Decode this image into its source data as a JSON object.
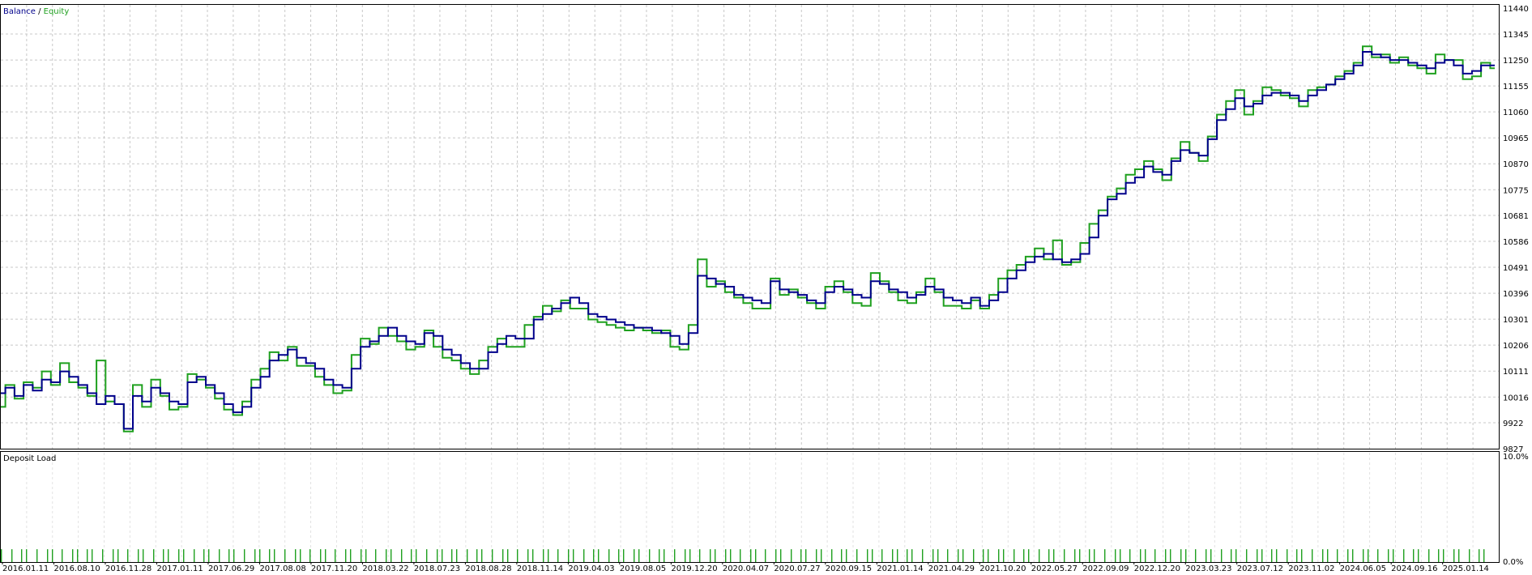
{
  "colors": {
    "balance": "#00008b",
    "equity": "#1fa01f",
    "grid": "#c8c8c8",
    "frame": "#000000",
    "load_bar": "#1fa01f"
  },
  "legend": {
    "balance": "Balance",
    "separator": " / ",
    "equity": "Equity"
  },
  "load_panel": {
    "title": "Deposit Load",
    "top_label": "10.0%",
    "bottom_label": "0.0%"
  },
  "chart_data": [
    {
      "type": "line",
      "title": "",
      "series": [
        {
          "name": "Balance",
          "values": [
            10030,
            10050,
            10020,
            10060,
            10040,
            10080,
            10070,
            10110,
            10090,
            10060,
            10030,
            9990,
            10020,
            9990,
            9900,
            10020,
            10000,
            10050,
            10030,
            10000,
            9990,
            10070,
            10090,
            10060,
            10030,
            9990,
            9960,
            9980,
            10050,
            10090,
            10150,
            10170,
            10190,
            10160,
            10140,
            10120,
            10080,
            10060,
            10050,
            10120,
            10200,
            10220,
            10240,
            10270,
            10240,
            10220,
            10210,
            10250,
            10240,
            10190,
            10170,
            10140,
            10120,
            10120,
            10180,
            10210,
            10240,
            10230,
            10230,
            10300,
            10320,
            10340,
            10360,
            10380,
            10360,
            10320,
            10310,
            10300,
            10290,
            10280,
            10270,
            10270,
            10260,
            10250,
            10240,
            10210,
            10250,
            10460,
            10450,
            10430,
            10420,
            10390,
            10380,
            10370,
            10360,
            10440,
            10410,
            10400,
            10390,
            10370,
            10360,
            10400,
            10420,
            10410,
            10390,
            10380,
            10440,
            10430,
            10410,
            10400,
            10380,
            10390,
            10420,
            10410,
            10380,
            10370,
            10360,
            10380,
            10350,
            10370,
            10400,
            10450,
            10480,
            10510,
            10530,
            10540,
            10520,
            10510,
            10520,
            10540,
            10600,
            10680,
            10740,
            10760,
            10800,
            10820,
            10860,
            10840,
            10830,
            10880,
            10920,
            10910,
            10900,
            10960,
            11030,
            11070,
            11110,
            11080,
            11090,
            11120,
            11130,
            11130,
            11120,
            11100,
            11120,
            11140,
            11160,
            11180,
            11200,
            11230,
            11280,
            11270,
            11260,
            11250,
            11250,
            11240,
            11230,
            11220,
            11240,
            11250,
            11230,
            11200,
            11210,
            11230,
            11230
          ]
        },
        {
          "name": "Equity",
          "values": [
            9980,
            10060,
            10010,
            10070,
            10050,
            10110,
            10060,
            10140,
            10070,
            10050,
            10020,
            10150,
            10000,
            9990,
            9890,
            10060,
            9980,
            10080,
            10020,
            9970,
            9980,
            10100,
            10080,
            10050,
            10010,
            9970,
            9950,
            10000,
            10080,
            10120,
            10180,
            10150,
            10200,
            10130,
            10130,
            10090,
            10060,
            10030,
            10040,
            10170,
            10230,
            10210,
            10270,
            10240,
            10220,
            10190,
            10200,
            10260,
            10200,
            10160,
            10150,
            10120,
            10100,
            10150,
            10200,
            10230,
            10200,
            10200,
            10280,
            10310,
            10350,
            10330,
            10370,
            10340,
            10340,
            10300,
            10290,
            10280,
            10270,
            10260,
            10270,
            10260,
            10250,
            10260,
            10200,
            10190,
            10280,
            10520,
            10420,
            10440,
            10400,
            10380,
            10360,
            10340,
            10340,
            10450,
            10390,
            10410,
            10380,
            10360,
            10340,
            10420,
            10440,
            10400,
            10360,
            10350,
            10470,
            10440,
            10400,
            10370,
            10360,
            10400,
            10450,
            10400,
            10350,
            10350,
            10340,
            10370,
            10340,
            10390,
            10450,
            10480,
            10500,
            10530,
            10560,
            10520,
            10590,
            10500,
            10510,
            10580,
            10650,
            10700,
            10750,
            10780,
            10830,
            10850,
            10880,
            10850,
            10810,
            10890,
            10950,
            10910,
            10880,
            10970,
            11050,
            11100,
            11140,
            11050,
            11100,
            11150,
            11140,
            11120,
            11110,
            11080,
            11140,
            11150,
            11160,
            11190,
            11210,
            11240,
            11300,
            11260,
            11270,
            11240,
            11260,
            11230,
            11220,
            11200,
            11270,
            11250,
            11250,
            11180,
            11190,
            11240,
            11220
          ]
        }
      ],
      "ylim": [
        9827,
        11440
      ],
      "yticks": [
        "11440",
        "11345",
        "11250",
        "11155",
        "11060",
        "10965",
        "10870",
        "10775",
        "10681",
        "10586",
        "10491",
        "10396",
        "10301",
        "10206",
        "10111",
        "10016",
        "9922",
        "9827"
      ],
      "grid": true
    },
    {
      "type": "bar",
      "title": "Deposit Load",
      "ylim": [
        0,
        10
      ],
      "values_note_free": true,
      "values": [
        1,
        1,
        1,
        1,
        1,
        1,
        1,
        1,
        1,
        1,
        1,
        1,
        1,
        1,
        1,
        1,
        1,
        1,
        1,
        1,
        1,
        1,
        1,
        1,
        1,
        1,
        1,
        1,
        1,
        1,
        1,
        1,
        1,
        1,
        1,
        1,
        1,
        1,
        1,
        1,
        1,
        1,
        1,
        1,
        1,
        1,
        1,
        1,
        1,
        1,
        1,
        1,
        1,
        1,
        1,
        1,
        1,
        1,
        1,
        1,
        1,
        1,
        1,
        1,
        1,
        1,
        1,
        1,
        1,
        1,
        1,
        1,
        1,
        1,
        1,
        1,
        1,
        1,
        1,
        1,
        1,
        1,
        1,
        1,
        1,
        1,
        1,
        1,
        1,
        1,
        1,
        1,
        1,
        1,
        1,
        1,
        1,
        1,
        1,
        1,
        1,
        1,
        1,
        1,
        1,
        1,
        1,
        1,
        1,
        1,
        1,
        1,
        1,
        1,
        1,
        1,
        1,
        1,
        1,
        1,
        1,
        1,
        1,
        1,
        1,
        1,
        1,
        1,
        1,
        1,
        1,
        1,
        1,
        1,
        1,
        1,
        1,
        1,
        1,
        1,
        1,
        1,
        1,
        1,
        1,
        1,
        1,
        1,
        1,
        1,
        1,
        1,
        1,
        1,
        1,
        1,
        1,
        1,
        1,
        1,
        1,
        1,
        1,
        1,
        1,
        1,
        1,
        1,
        1,
        1,
        1,
        1,
        1,
        1,
        1,
        1,
        1,
        1,
        1,
        1
      ],
      "xticks": [
        "2016.01.11",
        "2016.08.10",
        "2016.11.28",
        "2017.01.11",
        "2017.06.29",
        "2017.08.08",
        "2017.11.20",
        "2018.03.22",
        "2018.07.23",
        "2018.08.28",
        "2018.11.14",
        "2019.04.03",
        "2019.08.05",
        "2019.12.20",
        "2020.04.07",
        "2020.07.27",
        "2020.09.15",
        "2021.01.14",
        "2021.04.29",
        "2021.10.20",
        "2022.05.27",
        "2022.09.09",
        "2022.12.20",
        "2023.03.23",
        "2023.07.12",
        "2023.11.02",
        "2024.06.05",
        "2024.09.16",
        "2025.01.14"
      ]
    }
  ]
}
